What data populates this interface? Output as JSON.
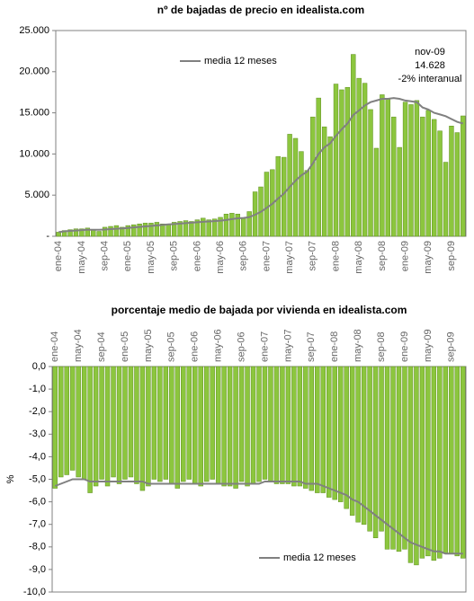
{
  "chart_data": [
    {
      "type": "bar",
      "title": "nº de bajadas de precio en idealista.com",
      "categories": [
        "ene-04",
        null,
        null,
        null,
        "may-04",
        null,
        null,
        null,
        "sep-04",
        null,
        null,
        null,
        "ene-05",
        null,
        null,
        null,
        "may-05",
        null,
        null,
        null,
        "sep-05",
        null,
        null,
        null,
        "ene-06",
        null,
        null,
        null,
        "may-06",
        null,
        null,
        null,
        "sep-06",
        null,
        null,
        null,
        "ene-07",
        null,
        null,
        null,
        "may-07",
        null,
        null,
        null,
        "sep-07",
        null,
        null,
        null,
        "ene-08",
        null,
        null,
        null,
        "may-08",
        null,
        null,
        null,
        "sep-08",
        null,
        null,
        null,
        "ene-09",
        null,
        null,
        null,
        "may-09",
        null,
        null,
        null,
        "sep-09",
        null,
        null
      ],
      "series": [
        {
          "type": "bar",
          "color": "#8cc63e",
          "values": [
            500,
            700,
            800,
            900,
            900,
            1000,
            800,
            600,
            1100,
            1200,
            1300,
            1100,
            1300,
            1400,
            1500,
            1600,
            1600,
            1700,
            1500,
            1400,
            1700,
            1800,
            1900,
            1800,
            2000,
            2200,
            2000,
            2100,
            2300,
            2700,
            2800,
            2700,
            2200,
            3000,
            5400,
            6000,
            7800,
            8100,
            9700,
            9600,
            12400,
            11900,
            10300,
            8000,
            14500,
            16800,
            13300,
            12100,
            18500,
            17800,
            18100,
            22100,
            19200,
            18600,
            15400,
            10700,
            17200,
            16700,
            14500,
            10800,
            16300,
            16000,
            16500,
            14500,
            15300,
            14200,
            12800,
            9000,
            13400,
            12600,
            14628
          ]
        },
        {
          "type": "line",
          "name": "media 12 meses",
          "color": "#808080",
          "values": [
            500,
            600,
            650,
            700,
            750,
            800,
            800,
            800,
            820,
            870,
            920,
            950,
            1020,
            1080,
            1140,
            1200,
            1260,
            1320,
            1380,
            1440,
            1490,
            1540,
            1590,
            1650,
            1700,
            1760,
            1800,
            1850,
            1900,
            1980,
            2080,
            2180,
            2230,
            2330,
            2620,
            2970,
            3450,
            3950,
            4600,
            5200,
            6000,
            6750,
            7400,
            7850,
            8850,
            10000,
            10800,
            11300,
            12200,
            13000,
            13700,
            14750,
            15300,
            15900,
            16300,
            16500,
            16700,
            16700,
            16800,
            16700,
            16500,
            16400,
            16300,
            15650,
            15400,
            15000,
            14800,
            14600,
            14250,
            13900,
            13700
          ]
        }
      ],
      "ylim": [
        0,
        25000
      ],
      "yticks": [
        {
          "value": 0,
          "label": "-"
        },
        {
          "value": 5000,
          "label": "5.000"
        },
        {
          "value": 10000,
          "label": "10.000"
        },
        {
          "value": 15000,
          "label": "15.000"
        },
        {
          "value": 20000,
          "label": "20.000"
        },
        {
          "value": 25000,
          "label": "25.000"
        }
      ],
      "xaxis_position": "bottom",
      "legend_position": "upper-left",
      "grid": false,
      "annotations": [
        {
          "text": "nov-09",
          "color": "#000000"
        },
        {
          "text": "14.628",
          "color": "#000000"
        },
        {
          "text": "-2% interanual",
          "color": "#cc0000"
        }
      ]
    },
    {
      "type": "bar",
      "title": "porcentaje medio de bajada por vivienda en idealista.com",
      "ylabel": "%",
      "categories": [
        "ene-04",
        null,
        null,
        null,
        "may-04",
        null,
        null,
        null,
        "sep-04",
        null,
        null,
        null,
        "ene-05",
        null,
        null,
        null,
        "may-05",
        null,
        null,
        null,
        "sep-05",
        null,
        null,
        null,
        "ene-06",
        null,
        null,
        null,
        "may-06",
        null,
        null,
        null,
        "sep-06",
        null,
        null,
        null,
        "ene-07",
        null,
        null,
        null,
        "may-07",
        null,
        null,
        null,
        "sep-07",
        null,
        null,
        null,
        "ene-08",
        null,
        null,
        null,
        "may-08",
        null,
        null,
        null,
        "sep-08",
        null,
        null,
        null,
        "ene-09",
        null,
        null,
        null,
        "may-09",
        null,
        null,
        null,
        "sep-09",
        null,
        null
      ],
      "series": [
        {
          "type": "bar",
          "color": "#8cc63e",
          "values": [
            -5.4,
            -4.9,
            -4.8,
            -4.6,
            -4.9,
            -5.0,
            -5.6,
            -5.3,
            -5.0,
            -5.3,
            -4.9,
            -5.2,
            -5.0,
            -4.9,
            -5.2,
            -5.5,
            -5.3,
            -5.0,
            -5.1,
            -5.0,
            -5.2,
            -5.4,
            -5.1,
            -5.0,
            -5.2,
            -5.3,
            -5.1,
            -5.0,
            -5.2,
            -5.3,
            -5.3,
            -5.4,
            -5.1,
            -5.3,
            -5.2,
            -5.1,
            -5.0,
            -5.1,
            -5.2,
            -5.2,
            -5.2,
            -5.3,
            -5.3,
            -5.4,
            -5.5,
            -5.6,
            -5.6,
            -5.8,
            -5.9,
            -6.0,
            -6.3,
            -6.6,
            -6.9,
            -7.0,
            -7.3,
            -7.6,
            -7.3,
            -8.1,
            -8.1,
            -8.2,
            -8.1,
            -8.7,
            -8.8,
            -8.5,
            -8.4,
            -8.6,
            -8.5,
            -8.3,
            -8.3,
            -8.4,
            -8.5
          ]
        },
        {
          "type": "line",
          "name": "media 12 meses",
          "color": "#808080",
          "values": [
            -5.3,
            -5.2,
            -5.1,
            -5.0,
            -5.0,
            -5.0,
            -5.1,
            -5.1,
            -5.1,
            -5.1,
            -5.1,
            -5.1,
            -5.1,
            -5.1,
            -5.1,
            -5.1,
            -5.2,
            -5.2,
            -5.2,
            -5.2,
            -5.2,
            -5.2,
            -5.2,
            -5.2,
            -5.2,
            -5.2,
            -5.2,
            -5.2,
            -5.2,
            -5.2,
            -5.2,
            -5.2,
            -5.2,
            -5.2,
            -5.2,
            -5.2,
            -5.1,
            -5.1,
            -5.1,
            -5.1,
            -5.1,
            -5.1,
            -5.1,
            -5.2,
            -5.2,
            -5.2,
            -5.3,
            -5.4,
            -5.5,
            -5.6,
            -5.7,
            -5.9,
            -6.0,
            -6.2,
            -6.4,
            -6.6,
            -6.8,
            -7.0,
            -7.2,
            -7.4,
            -7.6,
            -7.8,
            -7.9,
            -8.0,
            -8.1,
            -8.2,
            -8.2,
            -8.3,
            -8.3,
            -8.3,
            -8.3
          ]
        }
      ],
      "ylim": [
        -10,
        0
      ],
      "yticks": [
        {
          "value": 0,
          "label": "0,0"
        },
        {
          "value": -1,
          "label": "-1,0"
        },
        {
          "value": -2,
          "label": "-2,0"
        },
        {
          "value": -3,
          "label": "-3,0"
        },
        {
          "value": -4,
          "label": "-4,0"
        },
        {
          "value": -5,
          "label": "-5,0"
        },
        {
          "value": -6,
          "label": "-6,0"
        },
        {
          "value": -7,
          "label": "-7,0"
        },
        {
          "value": -8,
          "label": "-8,0"
        },
        {
          "value": -9,
          "label": "-9,0"
        },
        {
          "value": -10,
          "label": "-10,0"
        }
      ],
      "xaxis_position": "top",
      "legend_position": "lower-right",
      "grid": false
    }
  ]
}
